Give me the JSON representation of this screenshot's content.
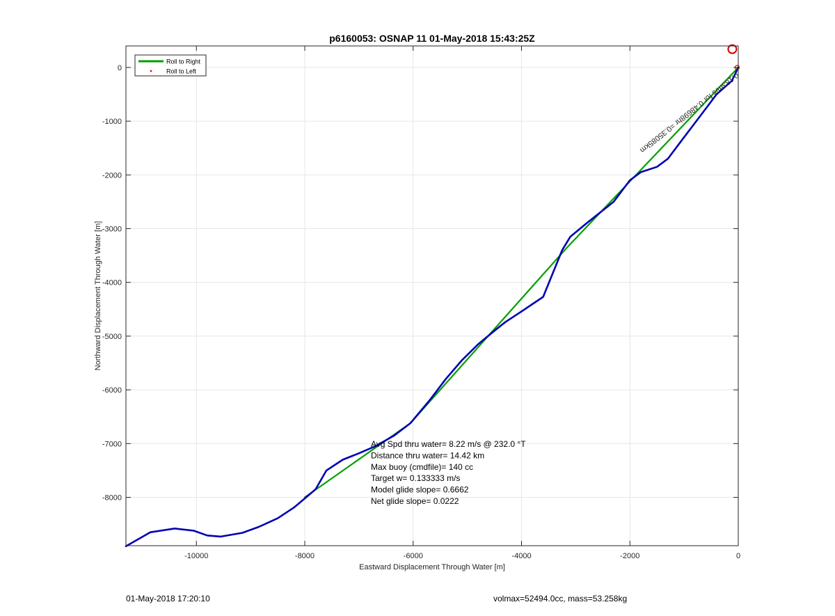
{
  "chart_data": {
    "type": "line",
    "title": "p6160053: OSNAP 11 01-May-2018 15:43:25Z",
    "xlabel": "Eastward Displacement Through Water [m]",
    "ylabel": "Northward Displacement Through Water [m]",
    "xlim": [
      -11300,
      0
    ],
    "ylim": [
      -8900,
      400
    ],
    "xticks": [
      -10000,
      -8000,
      -6000,
      -4000,
      -2000,
      0
    ],
    "xtick_labels": [
      "-10000",
      "-8000",
      "-6000",
      "-4000",
      "-2000",
      "0"
    ],
    "yticks": [
      0,
      -1000,
      -2000,
      -3000,
      -4000,
      -5000,
      -6000,
      -7000,
      -8000
    ],
    "ytick_labels": [
      "0",
      "-1000",
      "-2000",
      "-3000",
      "-4000",
      "-5000",
      "-6000",
      "-7000",
      "-8000"
    ],
    "grid": true,
    "legend": {
      "placement": "top-left",
      "entries": [
        {
          "label": "Roll to Right",
          "color": "#00a000",
          "style": "line"
        },
        {
          "label": "Roll to Left",
          "color": "#ff0000",
          "style": "dot"
        }
      ]
    },
    "series": [
      {
        "name": "Roll to Right",
        "color": "#00a000",
        "x": [
          0,
          -3150,
          -6050,
          -8000
        ],
        "y": [
          0,
          -3340,
          -6620,
          -8000
        ]
      },
      {
        "color": "#0000b4",
        "x": [
          0,
          -120,
          -400,
          -700,
          -1000,
          -1150,
          -1300,
          -1500,
          -1800,
          -2000,
          -2300,
          -2800,
          -3100,
          -3250,
          -3600,
          -4000,
          -4300,
          -4500,
          -4800,
          -5100,
          -5400,
          -5700,
          -6050,
          -6350,
          -6700,
          -7000,
          -7300,
          -7600,
          -7800,
          -8000,
          -8200,
          -8500,
          -8850,
          -9150,
          -9550,
          -9800,
          -10050,
          -10400,
          -10850,
          -11300
        ],
        "y": [
          0,
          -250,
          -500,
          -900,
          -1300,
          -1500,
          -1700,
          -1850,
          -1950,
          -2100,
          -2500,
          -2900,
          -3150,
          -3400,
          -4270,
          -4540,
          -4740,
          -4900,
          -5150,
          -5450,
          -5800,
          -6200,
          -6620,
          -6850,
          -7050,
          -7180,
          -7300,
          -7500,
          -7850,
          -8020,
          -8190,
          -8390,
          -8550,
          -8660,
          -8730,
          -8710,
          -8620,
          -8580,
          -8650,
          -8910
        ]
      }
    ],
    "annotations": {
      "rotated_label": "0.183m/s for 0.48698hr =0.35085km",
      "stats": [
        "Avg Spd thru water=  8.22 m/s @ 232.0 °T",
        "Distance thru water= 14.42 km",
        "Max buoy (cmdfile)= 140 cc",
        "Target w= 0.133333 m/s",
        "Model glide slope= 0.6662",
        "Net glide slope= 0.0222"
      ]
    }
  },
  "footer": {
    "date": "01-May-2018 17:20:10",
    "info": "volmax=52494.0cc, mass=53.258kg"
  },
  "colors": {
    "axis": "#262626",
    "grid": "#e6e6e6",
    "marker": "#d00000"
  }
}
